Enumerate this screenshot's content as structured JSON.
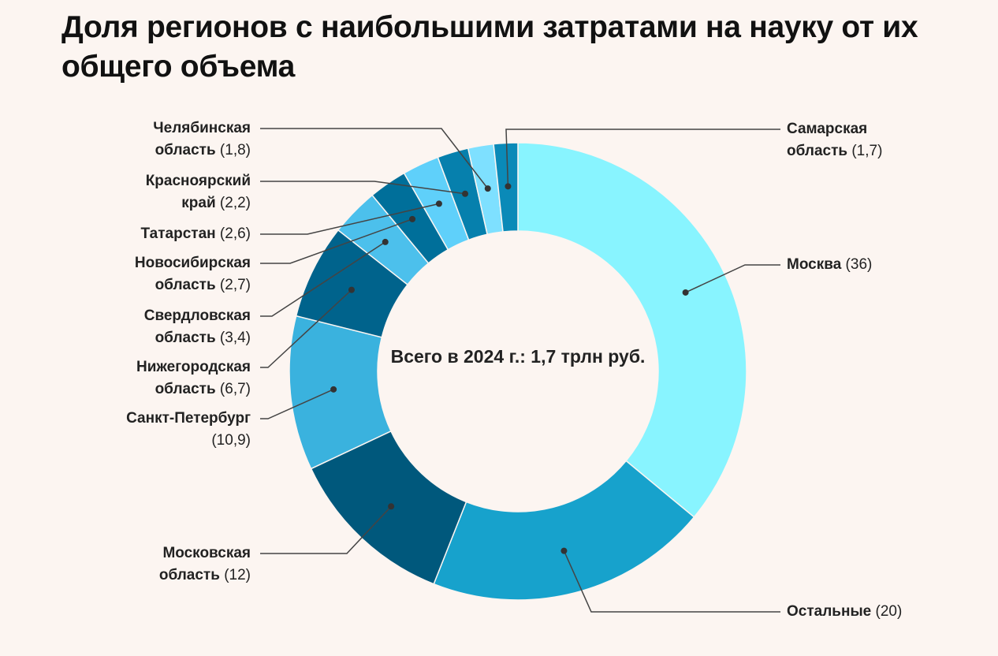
{
  "chart_data": {
    "type": "pie",
    "donut": true,
    "title": "Доля регионов с наибольшими затратами на науку от их общего объема",
    "center_label": "Всего в 2024 г.: 1,7 трлн руб.",
    "slices": [
      {
        "label": "Москва",
        "value": 36,
        "value_label": "(36)",
        "color": "#88f4ff"
      },
      {
        "label": "Остальные",
        "value": 20,
        "value_label": "(20)",
        "color": "#17a2cc"
      },
      {
        "label": "Московская область",
        "value": 12,
        "value_label": "(12)",
        "color": "#00587c"
      },
      {
        "label": "Санкт-Петербург",
        "value": 10.9,
        "value_label": "(10,9)",
        "color": "#3ab2de"
      },
      {
        "label": "Нижегородская область",
        "value": 6.7,
        "value_label": "(6,7)",
        "color": "#00638c"
      },
      {
        "label": "Свердловская область",
        "value": 3.4,
        "value_label": "(3,4)",
        "color": "#4cc0ec"
      },
      {
        "label": "Новосибирская область",
        "value": 2.7,
        "value_label": "(2,7)",
        "color": "#006f9a"
      },
      {
        "label": "Татарстан",
        "value": 2.6,
        "value_label": "(2,6)",
        "color": "#5fd0fa"
      },
      {
        "label": "Красноярский край",
        "value": 2.2,
        "value_label": "(2,2)",
        "color": "#0680ad"
      },
      {
        "label": "Челябинская область",
        "value": 1.8,
        "value_label": "(1,8)",
        "color": "#7ee0ff"
      },
      {
        "label": "Самарская область",
        "value": 1.7,
        "value_label": "(1,7)",
        "color": "#0a8ab8"
      }
    ]
  }
}
